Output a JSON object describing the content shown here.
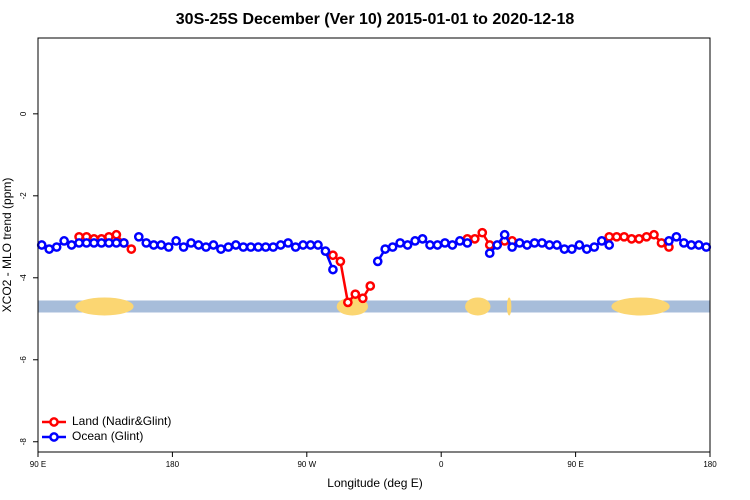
{
  "chart_data": {
    "type": "line",
    "title": "30S-25S December (Ver 10)   2015-01-01 to 2020-12-18",
    "xlabel": "Longitude (deg E)",
    "ylabel": "XCO2 - MLO trend (ppm)",
    "xlim": [
      90,
      540
    ],
    "ylim": [
      -8.25,
      1.85
    ],
    "xticks": [
      {
        "value": 90,
        "label": "90 E"
      },
      180,
      {
        "value": 270,
        "label": "90 W"
      },
      {
        "value": 360,
        "label": "0"
      },
      {
        "value": 450,
        "label": "90 E"
      },
      {
        "value": 540,
        "label": "180"
      }
    ],
    "yticks": [
      0,
      -2,
      -4,
      -6,
      -8
    ],
    "legend": "bottomleft",
    "land_mask": {
      "y": -4.7,
      "ocean_color": "#a7bdda",
      "land_color": "#fbd672",
      "land": [
        [
          115,
          154
        ],
        [
          290,
          311
        ],
        [
          376,
          393
        ],
        [
          404,
          407
        ],
        [
          474,
          513
        ]
      ]
    },
    "x": [
      92.5,
      97.5,
      102.5,
      107.5,
      112.5,
      117.5,
      122.5,
      127.5,
      132.5,
      137.5,
      142.5,
      147.5,
      152.5,
      157.5,
      162.5,
      167.5,
      172.5,
      177.5,
      182.5,
      187.5,
      192.5,
      197.5,
      202.5,
      207.5,
      212.5,
      217.5,
      222.5,
      227.5,
      232.5,
      237.5,
      242.5,
      247.5,
      252.5,
      257.5,
      262.5,
      267.5,
      272.5,
      277.5,
      282.5,
      287.5,
      292.5,
      297.5,
      302.5,
      307.5,
      312.5,
      317.5,
      322.5,
      327.5,
      332.5,
      337.5,
      342.5,
      347.5,
      352.5,
      357.5,
      362.5,
      367.5,
      372.5,
      377.5,
      382.5,
      387.5,
      392.5,
      397.5,
      402.5,
      407.5,
      412.5,
      417.5,
      422.5,
      427.5,
      432.5,
      437.5,
      442.5,
      447.5,
      452.5,
      457.5,
      462.5,
      467.5,
      472.5,
      477.5,
      482.5,
      487.5,
      492.5,
      497.5,
      502.5,
      507.5,
      512.5,
      517.5,
      522.5,
      527.5,
      532.5,
      537.5
    ],
    "series": [
      {
        "name": "Land (Nadir&Glint)",
        "color": "#ff0000",
        "values": [
          null,
          null,
          null,
          null,
          null,
          -3.0,
          -3.0,
          -3.05,
          -3.05,
          -3.0,
          -2.95,
          -3.15,
          -3.3,
          null,
          null,
          null,
          null,
          null,
          null,
          null,
          null,
          null,
          null,
          null,
          null,
          null,
          null,
          null,
          null,
          null,
          null,
          null,
          null,
          null,
          null,
          null,
          null,
          null,
          null,
          -3.45,
          -3.6,
          -4.6,
          -4.4,
          -4.5,
          -4.2,
          null,
          null,
          null,
          null,
          null,
          null,
          null,
          null,
          null,
          null,
          null,
          null,
          -3.05,
          -3.05,
          -2.9,
          -3.2,
          null,
          -3.1,
          -3.1,
          null,
          null,
          null,
          null,
          null,
          null,
          null,
          null,
          null,
          null,
          null,
          null,
          -3.0,
          -3.0,
          -3.0,
          -3.05,
          -3.05,
          -3.0,
          -2.95,
          -3.15,
          -3.25,
          null,
          null,
          null,
          null,
          null
        ]
      },
      {
        "name": "Ocean (Glint)",
        "color": "#0000ff",
        "values": [
          -3.2,
          -3.3,
          -3.25,
          -3.1,
          -3.2,
          -3.15,
          -3.15,
          -3.15,
          -3.15,
          -3.15,
          -3.15,
          -3.15,
          null,
          -3.0,
          -3.15,
          -3.2,
          -3.2,
          -3.25,
          -3.1,
          -3.25,
          -3.15,
          -3.2,
          -3.25,
          -3.2,
          -3.3,
          -3.25,
          -3.2,
          -3.25,
          -3.25,
          -3.25,
          -3.25,
          -3.25,
          -3.2,
          -3.15,
          -3.25,
          -3.2,
          -3.2,
          -3.2,
          -3.35,
          -3.8,
          null,
          null,
          null,
          null,
          null,
          -3.6,
          -3.3,
          -3.25,
          -3.15,
          -3.2,
          -3.1,
          -3.05,
          -3.2,
          -3.2,
          -3.15,
          -3.2,
          -3.1,
          -3.15,
          null,
          null,
          -3.4,
          -3.2,
          -2.95,
          -3.25,
          -3.15,
          -3.2,
          -3.15,
          -3.15,
          -3.2,
          -3.2,
          -3.3,
          -3.3,
          -3.2,
          -3.3,
          -3.25,
          -3.1,
          -3.2,
          null,
          null,
          null,
          null,
          null,
          null,
          null,
          -3.1,
          -3.0,
          -3.15,
          -3.2,
          -3.2,
          -3.25
        ]
      }
    ]
  }
}
